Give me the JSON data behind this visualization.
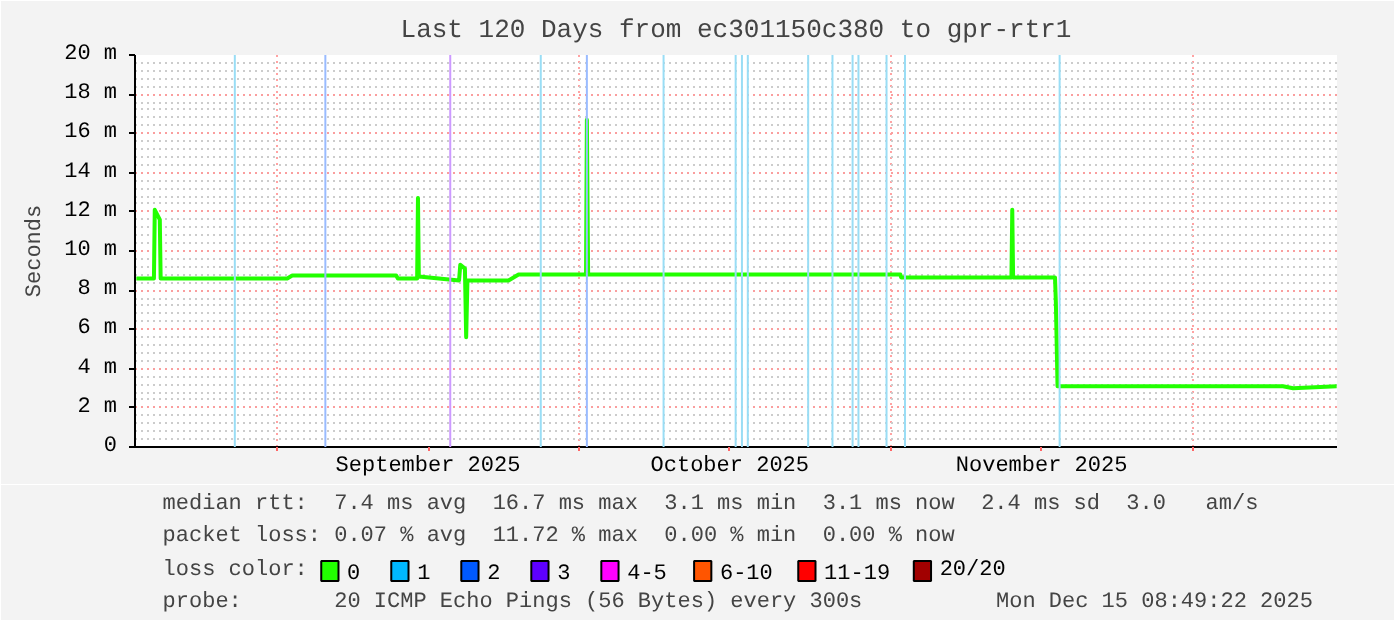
{
  "chart_data": {
    "type": "line",
    "title": "Last 120 Days from ec301150c380 to gpr-rtr1",
    "ylabel": "Seconds",
    "xlim": [
      "2025-08-17T20:49",
      "2025-12-15T08:49"
    ],
    "xticks": [
      {
        "value": "2025-09-01",
        "label": null
      },
      {
        "value": "2025-10-01",
        "label": null
      },
      {
        "value": "2025-11-01",
        "label": null
      },
      {
        "value": "2025-12-01",
        "label": null
      },
      {
        "value": "2025-09-16",
        "label": "September 2025"
      },
      {
        "value": "2025-10-16",
        "label": "October 2025"
      },
      {
        "value": "2025-11-16",
        "label": "November 2025"
      }
    ],
    "ylim": [
      0,
      20
    ],
    "yticks": [
      {
        "value": 0,
        "label": "0"
      },
      {
        "value": 2,
        "label": "2 m"
      },
      {
        "value": 4,
        "label": "4 m"
      },
      {
        "value": 6,
        "label": "6 m"
      },
      {
        "value": 8,
        "label": "8 m"
      },
      {
        "value": 10,
        "label": "10 m"
      },
      {
        "value": 12,
        "label": "12 m"
      },
      {
        "value": 14,
        "label": "14 m"
      },
      {
        "value": 16,
        "label": "16 m"
      },
      {
        "value": 18,
        "label": "18 m"
      },
      {
        "value": 20,
        "label": "20 m"
      }
    ],
    "grid": true,
    "legend": "bottom",
    "series": [
      {
        "name": "0",
        "color": "#22ff00",
        "x": [
          "2025-08-18",
          "2025-08-19T18:00",
          "2025-08-19T20:00",
          "2025-08-20T08:00",
          "2025-08-20T10:00",
          "2025-08-25",
          "2025-09-02",
          "2025-09-02T12:00",
          "2025-09-12T20:00",
          "2025-09-13",
          "2025-09-14T22:00",
          "2025-09-15",
          "2025-09-15T02:00",
          "2025-09-19T02:00",
          "2025-09-19T05:00",
          "2025-09-19T16:00",
          "2025-09-19T19:00",
          "2025-09-19T22:00",
          "2025-09-24",
          "2025-09-25",
          "2025-10-01T17:00",
          "2025-10-01T19:00",
          "2025-10-01T22:00",
          "2025-10-15",
          "2025-11-01T23:00",
          "2025-11-02T01:00",
          "2025-11-13T00:00",
          "2025-11-13T02:00",
          "2025-11-13T04:00",
          "2025-11-17T08:00",
          "2025-11-17T10:00",
          "2025-11-17T14:00",
          "2025-12-01",
          "2025-12-10",
          "2025-12-11",
          "2025-12-15T08:00"
        ],
        "values": [
          8.6,
          8.6,
          12.1,
          11.6,
          8.6,
          8.6,
          8.6,
          8.75,
          8.75,
          8.6,
          8.6,
          12.7,
          8.7,
          8.5,
          9.3,
          9.1,
          5.6,
          8.5,
          8.5,
          8.8,
          8.8,
          16.7,
          8.8,
          8.8,
          8.8,
          8.65,
          8.65,
          12.1,
          8.65,
          8.65,
          7.4,
          3.1,
          3.1,
          3.1,
          3.0,
          3.1
        ]
      },
      {
        "name": "1",
        "color": "#00b8ff"
      },
      {
        "name": "2",
        "color": "#0059ff"
      },
      {
        "name": "3",
        "color": "#5e00ff"
      },
      {
        "name": "4-5",
        "color": "#ff00ff"
      },
      {
        "name": "6-10",
        "color": "#ff5500"
      },
      {
        "name": "11-19",
        "color": "#ff0000"
      },
      {
        "name": "20/20",
        "color": "#a10000"
      }
    ],
    "legend_title": "loss color:",
    "ref_lines": [
      {
        "axis": "x",
        "value": "2025-08-27T19:00",
        "color": "#99ddf5"
      },
      {
        "axis": "x",
        "value": "2025-09-05T19:00",
        "color": "#99bbff"
      },
      {
        "axis": "x",
        "value": "2025-09-18T05:00",
        "color": "#cc99ff"
      },
      {
        "axis": "x",
        "value": "2025-09-27T05:00",
        "color": "#99ddf5"
      },
      {
        "axis": "x",
        "value": "2025-10-01T19:00",
        "color": "#99bbff"
      },
      {
        "axis": "x",
        "value": "2025-10-09T10:00",
        "color": "#99ddf5"
      },
      {
        "axis": "x",
        "value": "2025-10-16T14:00",
        "color": "#99ddf5"
      },
      {
        "axis": "x",
        "value": "2025-10-17T05:00",
        "color": "#99ddf5"
      },
      {
        "axis": "x",
        "value": "2025-10-17T19:00",
        "color": "#99ddf5"
      },
      {
        "axis": "x",
        "value": "2025-10-23T19:00",
        "color": "#99ddf5"
      },
      {
        "axis": "x",
        "value": "2025-10-26T05:00",
        "color": "#99ddf5"
      },
      {
        "axis": "x",
        "value": "2025-10-28T05:00",
        "color": "#99ddf5"
      },
      {
        "axis": "x",
        "value": "2025-10-28T19:00",
        "color": "#99ddf5"
      },
      {
        "axis": "x",
        "value": "2025-10-31T14:00",
        "color": "#99ddf5"
      },
      {
        "axis": "x",
        "value": "2025-11-02T10:00",
        "color": "#99ddf5"
      },
      {
        "axis": "x",
        "value": "2025-11-17T19:00",
        "color": "#99ddf5"
      }
    ],
    "annotations": [
      "median rtt:  7.4 ms avg  16.7 ms max  3.1 ms min  3.1 ms now  2.4 ms sd  3.0   am/s",
      "packet loss: 0.07 % avg  11.72 % max  0.00 % min  0.00 % now",
      "probe:       20 ICMP Echo Pings (56 Bytes) every 300s",
      "Mon Dec 15 08:49:22 2025"
    ]
  }
}
